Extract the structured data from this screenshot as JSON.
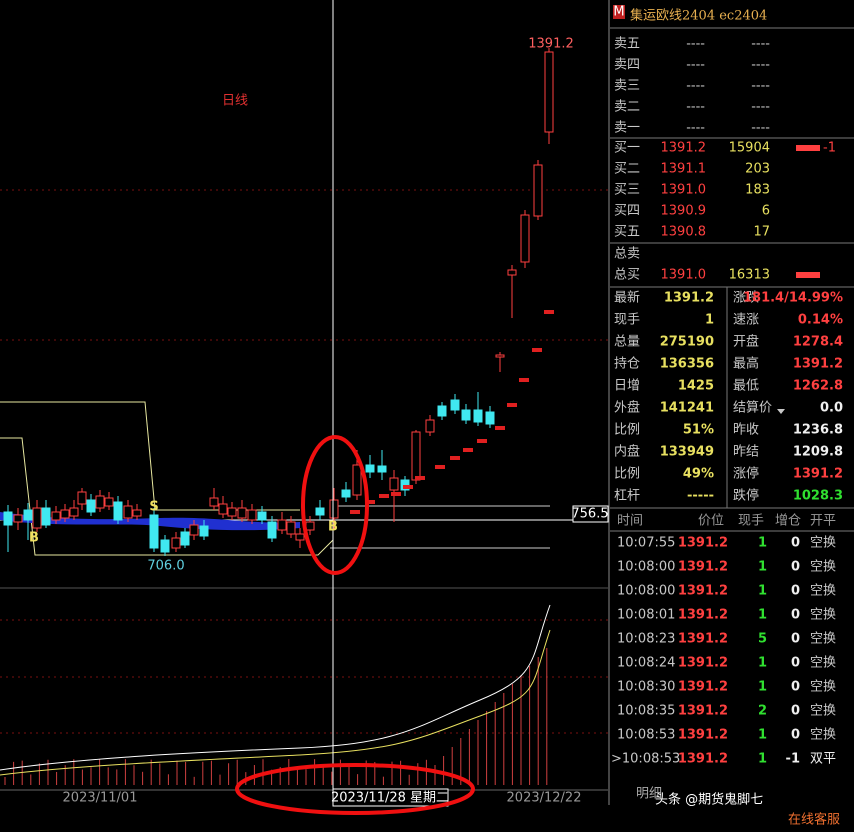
{
  "header": {
    "badge": "M",
    "title": "集运欧线2404 ec2404"
  },
  "chart": {
    "period": "日线",
    "high_label": "1391.2",
    "low_label": "706.0",
    "price_tag": "756.5",
    "markers": [
      "S",
      "B",
      "B"
    ],
    "x_labels": [
      "2023/11/01",
      "2023/11/28 星期二",
      "2023/12/22"
    ]
  },
  "order_book": {
    "sell": [
      [
        "卖五",
        "----",
        "----"
      ],
      [
        "卖四",
        "----",
        "----"
      ],
      [
        "卖三",
        "----",
        "----"
      ],
      [
        "卖二",
        "----",
        "----"
      ],
      [
        "卖一",
        "----",
        "----"
      ]
    ],
    "buy": [
      [
        "买一",
        "1391.2",
        "15904",
        "-1"
      ],
      [
        "买二",
        "1391.1",
        "203"
      ],
      [
        "买三",
        "1391.0",
        "183"
      ],
      [
        "买四",
        "1390.9",
        "6"
      ],
      [
        "买五",
        "1390.8",
        "17"
      ]
    ],
    "totals": [
      [
        "总卖"
      ],
      [
        "总买",
        "1391.0",
        "16313"
      ]
    ]
  },
  "stats": [
    [
      "最新",
      "1391.2",
      "涨跌",
      "181.4/14.99%"
    ],
    [
      "现手",
      "1",
      "速涨",
      "0.14%"
    ],
    [
      "总量",
      "275190",
      "开盘",
      "1278.4"
    ],
    [
      "持仓",
      "136356",
      "最高",
      "1391.2"
    ],
    [
      "日增",
      "1425",
      "最低",
      "1262.8"
    ],
    [
      "外盘",
      "141241",
      "结算价",
      "0.0"
    ],
    [
      "比例",
      "51%",
      "昨收",
      "1236.8"
    ],
    [
      "内盘",
      "133949",
      "昨结",
      "1209.8"
    ],
    [
      "比例",
      "49%",
      "涨停",
      "1391.2"
    ],
    [
      "杠杆",
      "-----",
      "跌停",
      "1028.3"
    ]
  ],
  "trades": {
    "header": [
      "时间",
      "价位",
      "现手",
      "增仓",
      "开平"
    ],
    "rows": [
      [
        "10:07:55",
        "1391.2",
        "1",
        "0",
        "空换"
      ],
      [
        "10:08:00",
        "1391.2",
        "1",
        "0",
        "空换"
      ],
      [
        "10:08:00",
        "1391.2",
        "1",
        "0",
        "空换"
      ],
      [
        "10:08:01",
        "1391.2",
        "1",
        "0",
        "空换"
      ],
      [
        "10:08:23",
        "1391.2",
        "5",
        "0",
        "空换"
      ],
      [
        "10:08:24",
        "1391.2",
        "1",
        "0",
        "空换"
      ],
      [
        "10:08:30",
        "1391.2",
        "1",
        "0",
        "空换"
      ],
      [
        "10:08:35",
        "1391.2",
        "2",
        "0",
        "空换"
      ],
      [
        "10:08:53",
        "1391.2",
        "1",
        "0",
        "空换"
      ],
      [
        ">10:08:53",
        "1391.2",
        "1",
        "-1",
        "双平"
      ]
    ]
  },
  "footer": {
    "tab": "明细",
    "watermark": "头条 @期货鬼脚七",
    "service": "在线客服"
  }
}
